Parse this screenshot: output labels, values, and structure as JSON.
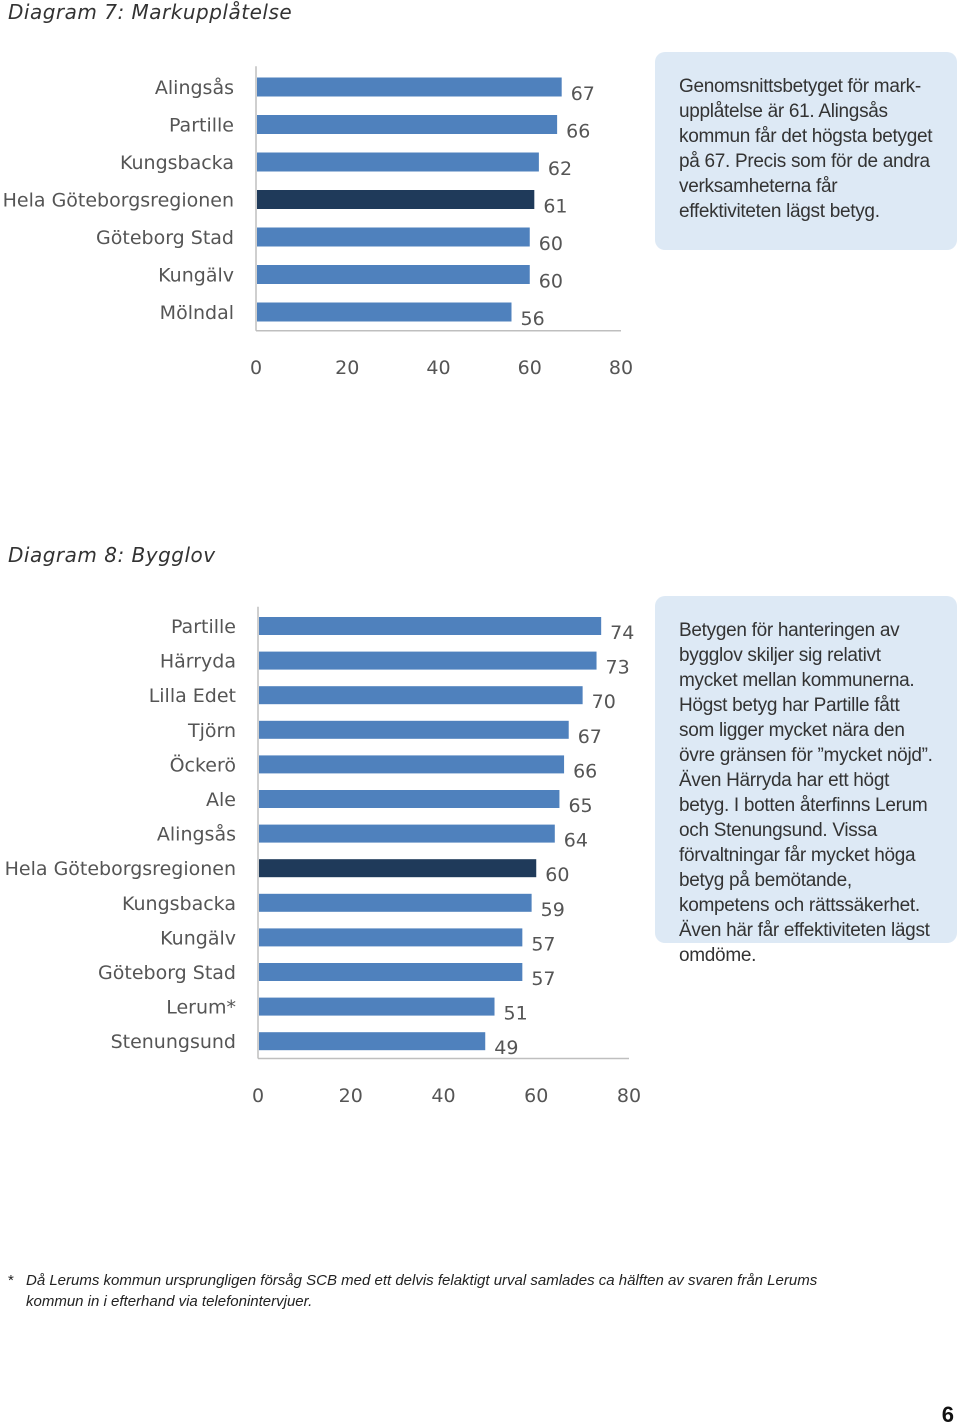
{
  "diagram7": {
    "title": "Diagram 7: Markupplåtelse",
    "info_text": "Genomsnittsbetyget för mark-upplåtelse är 61. Alingsås kommun får det högsta betyget på 67. Precis som för de andra verksamheterna får effektiviteten lägst betyg."
  },
  "diagram8": {
    "title": "Diagram 8: Bygglov",
    "info_text": "Betygen för hanteringen av bygglov skiljer sig relativt mycket mellan kommunerna. Högst betyg har Partille fått som ligger mycket nära den övre gränsen för ”mycket nöjd”. Även Härryda har ett högt betyg. I botten återfinns Lerum och Stenungsund. Vissa förvaltningar får mycket höga betyg på bemötande, kompetens och rättssäkerhet. Även här får effektiviteten lägst omdöme."
  },
  "colors": {
    "bar": "#4f81bd",
    "bar_highlight": "#1f3a5a",
    "axis": "#bfbfbf",
    "infobox_bg": "#dde9f5"
  },
  "chart_data": [
    {
      "type": "bar",
      "orientation": "horizontal",
      "title": "Diagram 7: Markupplåtelse",
      "categories": [
        "Alingsås",
        "Partille",
        "Kungsbacka",
        "Hela Göteborgsregionen",
        "Göteborg Stad",
        "Kungälv",
        "Mölndal"
      ],
      "values": [
        67,
        66,
        62,
        61,
        60,
        60,
        56
      ],
      "highlight": "Hela Göteborgsregionen",
      "xlim": [
        0,
        80
      ],
      "xticks": [
        0,
        20,
        40,
        60,
        80
      ],
      "grid": false
    },
    {
      "type": "bar",
      "orientation": "horizontal",
      "title": "Diagram 8: Bygglov",
      "categories": [
        "Partille",
        "Härryda",
        "Lilla Edet",
        "Tjörn",
        "Öckerö",
        "Ale",
        "Alingsås",
        "Hela Göteborgsregionen",
        "Kungsbacka",
        "Kungälv",
        "Göteborg Stad",
        "Lerum*",
        "Stenungsund"
      ],
      "values": [
        74,
        73,
        70,
        67,
        66,
        65,
        64,
        60,
        59,
        57,
        57,
        51,
        49
      ],
      "highlight": "Hela Göteborgsregionen",
      "xlim": [
        0,
        80
      ],
      "xticks": [
        0,
        20,
        40,
        60,
        80
      ],
      "grid": false
    }
  ],
  "footnote": {
    "marker": "*",
    "text": "Då Lerums kommun ursprungligen försåg SCB med ett delvis felaktigt urval samlades ca hälften av svaren från Lerums kommun in i efterhand via telefonintervjuer."
  },
  "page_number": "6"
}
